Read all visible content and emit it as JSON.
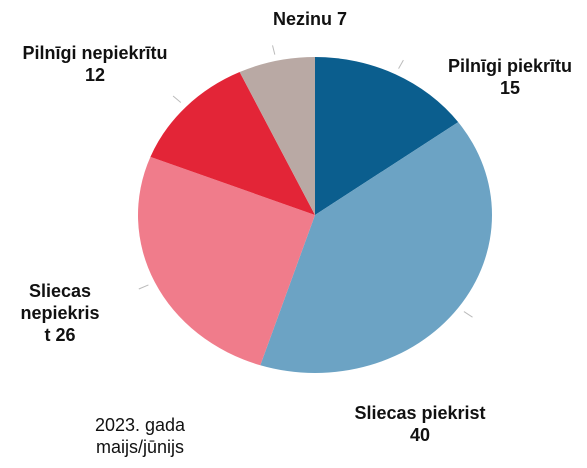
{
  "chart_data": {
    "type": "pie",
    "subtitle": "2023. gada maijs/jūnijs",
    "categories": [
      "Pilnīgi piekrītu",
      "Sliecas piekrist",
      "Sliecas nepiekrist",
      "Pilnīgi nepiekrītu",
      "Nezinu"
    ],
    "values": [
      15,
      40,
      26,
      12,
      7
    ],
    "colors": [
      "#0b5e8e",
      "#6ca3c4",
      "#f07c8b",
      "#e32537",
      "#b9a9a4"
    ]
  }
}
